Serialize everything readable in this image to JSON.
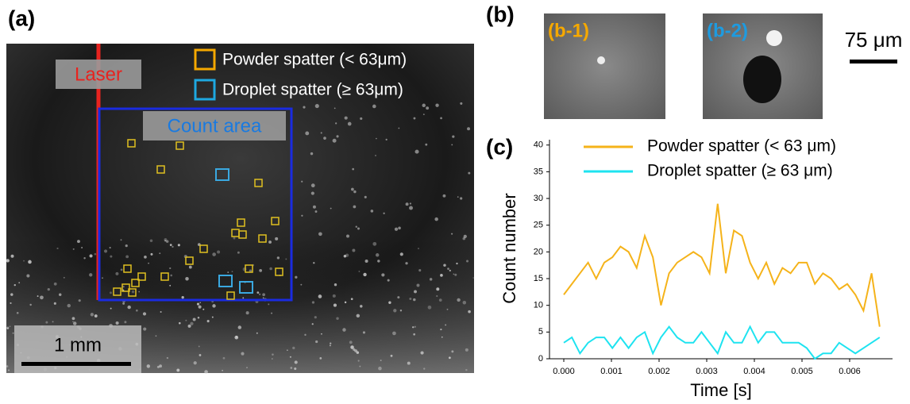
{
  "panel_a": {
    "label": "(a)",
    "laser": "Laser",
    "legend": [
      "Powder spatter (< 63μm)",
      "Droplet spatter (≥ 63μm)"
    ],
    "count_area": "Count area",
    "scale_bar": "1 mm"
  },
  "panel_b": {
    "label": "(b)",
    "images": [
      "(b-1)",
      "(b-2)"
    ],
    "scale_bar": "75 μm"
  },
  "chart_data": {
    "type": "line",
    "panel_label": "(c)",
    "x_label": "Time [s]",
    "y_label": "Count number",
    "x": [
      0,
      0.00017,
      0.00034,
      0.00051,
      0.00068,
      0.00085,
      0.00102,
      0.00119,
      0.00136,
      0.00153,
      0.0017,
      0.00187,
      0.00204,
      0.00221,
      0.00238,
      0.00255,
      0.00272,
      0.00289,
      0.00306,
      0.00323,
      0.0034,
      0.00357,
      0.00374,
      0.00391,
      0.00408,
      0.00425,
      0.00442,
      0.00459,
      0.00476,
      0.00493,
      0.0051,
      0.00527,
      0.00544,
      0.00561,
      0.00578,
      0.00595,
      0.00612,
      0.00629,
      0.00646,
      0.00663
    ],
    "series": [
      {
        "name": "Powder spatter (< 63 μm)",
        "color": "#f5b31a",
        "values": [
          12,
          14,
          16,
          18,
          15,
          18,
          19,
          21,
          20,
          17,
          23,
          19,
          10,
          16,
          18,
          19,
          20,
          19,
          16,
          29,
          16,
          24,
          23,
          18,
          15,
          18,
          14,
          17,
          16,
          18,
          18,
          14,
          16,
          15,
          13,
          14,
          12,
          9,
          16,
          6
        ]
      },
      {
        "name": "Droplet spatter (≥ 63 μm)",
        "color": "#1ee3f0",
        "values": [
          3,
          4,
          1,
          3,
          4,
          4,
          2,
          4,
          2,
          4,
          5,
          1,
          4,
          6,
          4,
          3,
          3,
          5,
          3,
          1,
          5,
          3,
          3,
          6,
          3,
          5,
          5,
          3,
          3,
          3,
          2,
          0,
          1,
          1,
          3,
          2,
          1,
          2,
          3,
          4
        ]
      }
    ],
    "xlim": [
      -0.0003,
      0.0069
    ],
    "ylim": [
      0,
      41
    ],
    "xticks": [
      {
        "value": 0,
        "label": "0.000"
      },
      {
        "value": 0.001,
        "label": "0.001"
      },
      {
        "value": 0.002,
        "label": "0.002"
      },
      {
        "value": 0.003,
        "label": "0.003"
      },
      {
        "value": 0.004,
        "label": "0.004"
      },
      {
        "value": 0.005,
        "label": "0.005"
      },
      {
        "value": 0.006,
        "label": "0.006"
      }
    ],
    "yticks": [
      0,
      5,
      10,
      15,
      20,
      25,
      30,
      35,
      40
    ],
    "legend": "upper right"
  }
}
